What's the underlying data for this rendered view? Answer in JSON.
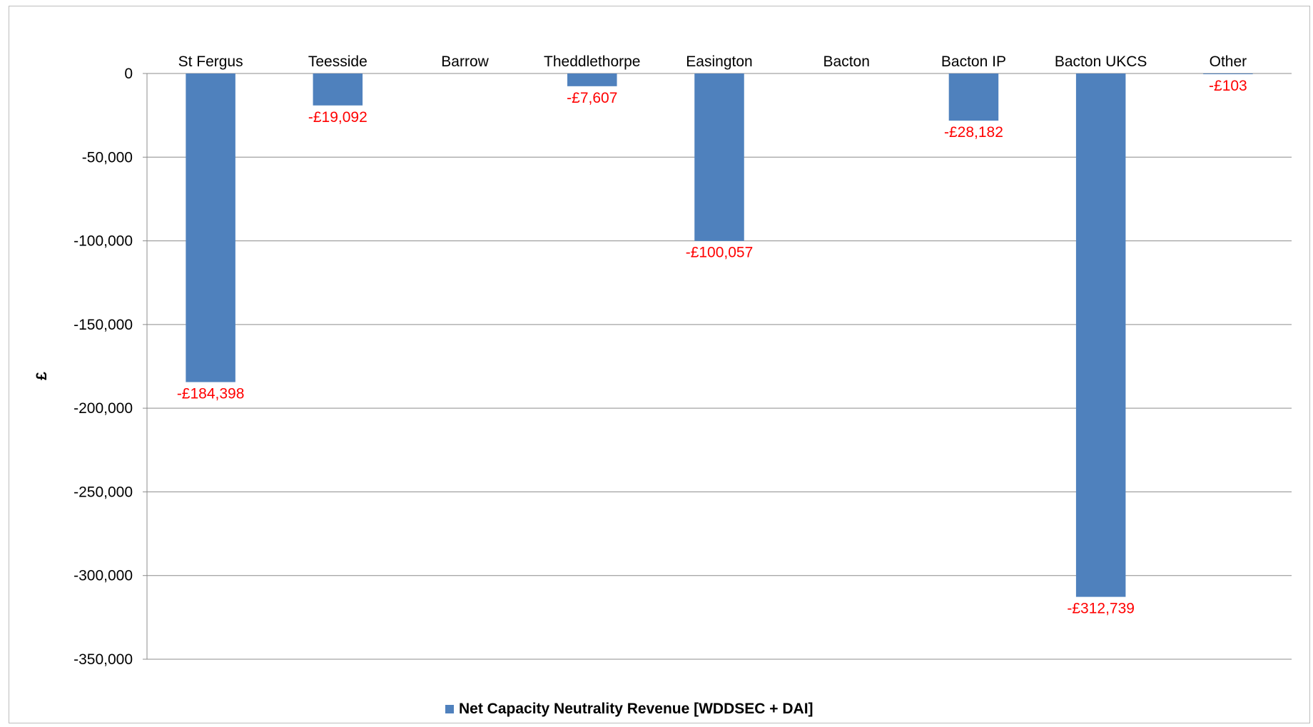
{
  "chart_data": {
    "type": "bar",
    "categories": [
      "St Fergus",
      "Teesside",
      "Barrow",
      "Theddlethorpe",
      "Easington",
      "Bacton",
      "Bacton IP",
      "Bacton UKCS",
      "Other"
    ],
    "series": [
      {
        "name": "Net Capacity Neutrality Revenue [WDDSEC + DAI]",
        "values": [
          -184398,
          -19092,
          null,
          -7607,
          -100057,
          null,
          -28182,
          -312739,
          -103
        ],
        "labels": [
          "-£184,398",
          "-£19,092",
          "",
          "-£7,607",
          "-£100,057",
          "",
          "-£28,182",
          "-£312,739",
          "-£103"
        ]
      }
    ],
    "ylabel": "£",
    "xlabel": "",
    "ylim": [
      -350000,
      0
    ],
    "yticks": [
      0,
      -50000,
      -100000,
      -150000,
      -200000,
      -250000,
      -300000,
      -350000
    ],
    "ytick_labels": [
      "0",
      "-50,000",
      "-100,000",
      "-150,000",
      "-200,000",
      "-250,000",
      "-300,000",
      "-350,000"
    ],
    "grid": true,
    "legend_position": "bottom",
    "colors": {
      "bar": "#4F81BD",
      "data_label": "#FF0000",
      "grid": "#8c8c8c",
      "text": "#000000"
    }
  }
}
